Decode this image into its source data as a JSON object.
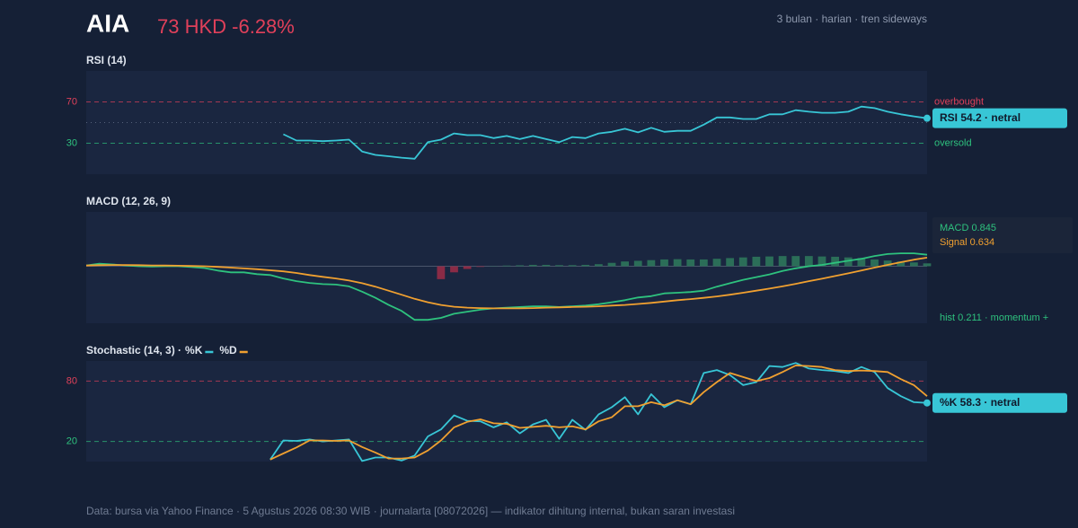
{
  "header": {
    "symbol": "AIA",
    "quote": "73 HKD -6.28%",
    "meta": "3 bulan · harian · tren sideways"
  },
  "footer": "Data: bursa via Yahoo Finance · 5 Agustus 2026 08:30 WIB · journalarta [08072026] — indikator dihitung internal, bukan saran investasi",
  "chart_data": [
    {
      "type": "line",
      "title": "RSI (14)",
      "ylim": [
        0,
        100
      ],
      "yticks": [
        30,
        70
      ],
      "level_labels": [
        "oversold",
        "overbought"
      ],
      "level_colors": [
        "#2ec27e",
        "#e0405a"
      ],
      "midline": 50,
      "end_label": "RSI 54.2 · netral",
      "series": [
        {
          "color": "#38c6d6",
          "values": [
            null,
            null,
            null,
            null,
            null,
            null,
            null,
            null,
            null,
            null,
            null,
            null,
            null,
            null,
            null,
            38.7,
            32.6,
            32.6,
            32,
            32.6,
            33.5,
            22,
            18.7,
            17.4,
            16,
            15,
            31,
            33.5,
            39.5,
            37.8,
            37.8,
            35,
            37,
            34,
            37,
            34,
            31,
            36,
            35,
            39.5,
            41,
            44,
            40.5,
            45,
            41,
            42,
            42,
            48,
            55,
            55,
            53.5,
            53.5,
            58,
            58,
            62,
            60.5,
            59.5,
            59.5,
            60.5,
            65.5,
            64,
            60.5,
            58,
            56,
            54.2
          ]
        }
      ]
    },
    {
      "type": "macd",
      "title": "MACD (12, 26, 9)",
      "ylim": [
        -4.2,
        4
      ],
      "series": [
        {
          "label": "MACD 0.845",
          "color": "#2ec27e",
          "values": [
            0.06,
            0.19,
            0.13,
            0.06,
            0,
            -0.03,
            0,
            0,
            -0.06,
            -0.13,
            -0.32,
            -0.45,
            -0.45,
            -0.58,
            -0.65,
            -0.9,
            -1.1,
            -1.23,
            -1.32,
            -1.35,
            -1.48,
            -1.87,
            -2.32,
            -2.84,
            -3.29,
            -3.95,
            -3.95,
            -3.8,
            -3.5,
            -3.35,
            -3.2,
            -3.1,
            -3.05,
            -3.0,
            -2.95,
            -2.95,
            -3.0,
            -2.95,
            -2.9,
            -2.8,
            -2.65,
            -2.5,
            -2.3,
            -2.2,
            -2.0,
            -1.95,
            -1.9,
            -1.8,
            -1.5,
            -1.25,
            -1.0,
            -0.8,
            -0.6,
            -0.35,
            -0.15,
            0,
            0.1,
            0.25,
            0.4,
            0.55,
            0.75,
            0.9,
            0.95,
            0.95,
            0.845
          ]
        },
        {
          "label": "Signal 0.634",
          "color": "#f0a030",
          "values": [
            0.05,
            0.08,
            0.09,
            0.09,
            0.08,
            0.06,
            0.05,
            0.04,
            0.02,
            0,
            -0.05,
            -0.1,
            -0.16,
            -0.22,
            -0.3,
            -0.38,
            -0.5,
            -0.65,
            -0.78,
            -0.9,
            -1.05,
            -1.25,
            -1.5,
            -1.8,
            -2.1,
            -2.4,
            -2.65,
            -2.85,
            -2.98,
            -3.05,
            -3.08,
            -3.1,
            -3.1,
            -3.1,
            -3.08,
            -3.05,
            -3.03,
            -3.0,
            -2.98,
            -2.95,
            -2.9,
            -2.85,
            -2.78,
            -2.7,
            -2.6,
            -2.5,
            -2.42,
            -2.33,
            -2.22,
            -2.1,
            -1.95,
            -1.8,
            -1.65,
            -1.48,
            -1.3,
            -1.1,
            -0.92,
            -0.72,
            -0.52,
            -0.32,
            -0.1,
            0.1,
            0.3,
            0.48,
            0.634
          ]
        }
      ],
      "histogram": {
        "label": "hist 0.211 · momentum +",
        "pos_color": "#2b6e58",
        "neg_color": "#8a2b46",
        "values": [
          null,
          null,
          null,
          null,
          null,
          null,
          null,
          null,
          null,
          null,
          null,
          null,
          null,
          null,
          null,
          null,
          null,
          null,
          null,
          null,
          null,
          null,
          null,
          null,
          null,
          null,
          null,
          -0.95,
          -0.45,
          -0.2,
          -0.05,
          0.02,
          0.05,
          0.07,
          0.1,
          0.1,
          0.08,
          0.08,
          0.1,
          0.15,
          0.25,
          0.35,
          0.4,
          0.45,
          0.5,
          0.52,
          0.5,
          0.5,
          0.55,
          0.6,
          0.65,
          0.7,
          0.72,
          0.75,
          0.75,
          0.75,
          0.72,
          0.7,
          0.65,
          0.6,
          0.5,
          0.42,
          0.35,
          0.28,
          0.211
        ]
      }
    },
    {
      "type": "line",
      "title": "Stochastic (14, 3) ·",
      "ylim": [
        0,
        100
      ],
      "yticks": [
        20,
        80
      ],
      "level_colors": [
        "#2ec27e",
        "#e0405a"
      ],
      "legend": true,
      "end_label": "%K 58.3 · netral",
      "series": [
        {
          "name": "%K",
          "color": "#38c6d6",
          "values": [
            null,
            null,
            null,
            null,
            null,
            null,
            null,
            null,
            null,
            null,
            null,
            null,
            null,
            null,
            2,
            21,
            20.5,
            22,
            20,
            21,
            22,
            0.5,
            4,
            4,
            1,
            6,
            25,
            32,
            46,
            40.5,
            40,
            34,
            39,
            28,
            37,
            41.5,
            22.5,
            41.5,
            31.5,
            47,
            54,
            64,
            47,
            67,
            54,
            61,
            57,
            88,
            91,
            86,
            76,
            79,
            95,
            94,
            98,
            92.5,
            91,
            90,
            88,
            94,
            89,
            73,
            65,
            59,
            58.3
          ]
        },
        {
          "name": "%D",
          "color": "#f0a030",
          "values": [
            null,
            null,
            null,
            null,
            null,
            null,
            null,
            null,
            null,
            null,
            null,
            null,
            null,
            null,
            2,
            8,
            14,
            21,
            21,
            20.5,
            21,
            14.5,
            9,
            3,
            3,
            4,
            11,
            21,
            34,
            39.5,
            42,
            38,
            37.5,
            33.5,
            34.5,
            35.5,
            34,
            35,
            32,
            40,
            44,
            55,
            55,
            59,
            56,
            61,
            57,
            69,
            79,
            88,
            84,
            80,
            83,
            89,
            95.5,
            95,
            94,
            91,
            90,
            90.5,
            90,
            89,
            82,
            76,
            65
          ]
        }
      ]
    }
  ]
}
